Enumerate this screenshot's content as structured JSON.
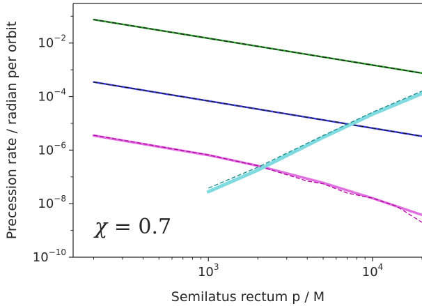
{
  "chart_data": {
    "type": "line",
    "xlabel": "Semilatus rectum p / M",
    "ylabel": "Precession rate / radian per orbit",
    "xscale": "log",
    "yscale": "log",
    "xlim": [
      150,
      20000
    ],
    "ylim": [
      1e-10,
      0.3
    ],
    "grid": false,
    "x_ticks": [
      {
        "base": "10",
        "exp": "3",
        "value": 1000
      },
      {
        "base": "10",
        "exp": "4",
        "value": 10000
      }
    ],
    "y_ticks": [
      {
        "base": "10",
        "exp": "−10",
        "value": 1e-10
      },
      {
        "base": "10",
        "exp": "−8",
        "value": 1e-08
      },
      {
        "base": "10",
        "exp": "−6",
        "value": 1e-06
      },
      {
        "base": "10",
        "exp": "−4",
        "value": 0.0001
      },
      {
        "base": "10",
        "exp": "−2",
        "value": 0.01
      }
    ],
    "annotation": {
      "symbol": "χ",
      "rest": " = 0.7"
    },
    "series": [
      {
        "color": "#2ca02c",
        "style": "solid",
        "width": 2.5,
        "points": [
          [
            200,
            0.075
          ],
          [
            20000,
            0.00075
          ]
        ]
      },
      {
        "color": "#1a1a1a",
        "style": "dashed",
        "width": 1.3,
        "points": [
          [
            200,
            0.075
          ],
          [
            20000,
            0.00075
          ]
        ]
      },
      {
        "color": "#3a3ae8",
        "style": "solid",
        "width": 2.5,
        "points": [
          [
            200,
            0.00035
          ],
          [
            20000,
            3.3e-06
          ]
        ]
      },
      {
        "color": "#1a1a1a",
        "style": "dashed",
        "width": 1.3,
        "points": [
          [
            200,
            0.00035
          ],
          [
            20000,
            3.3e-06
          ]
        ]
      },
      {
        "color": "#e070e0",
        "style": "solid",
        "width": 3.5,
        "points": [
          [
            200,
            3.5e-06
          ],
          [
            1000,
            6.5e-07
          ],
          [
            2000,
            2.6e-07
          ],
          [
            5000,
            6e-08
          ],
          [
            10000,
            1.6e-08
          ],
          [
            20000,
            3.8e-09
          ]
        ]
      },
      {
        "color": "#b000a0",
        "style": "dashed",
        "width": 1.3,
        "points": [
          [
            200,
            3.6e-06
          ],
          [
            1000,
            6.6e-07
          ],
          [
            2000,
            2.6e-07
          ],
          [
            4000,
            7e-08
          ],
          [
            5000,
            5.5e-08
          ],
          [
            7000,
            2.5e-08
          ],
          [
            10000,
            1.6e-08
          ],
          [
            14000,
            8e-09
          ],
          [
            20000,
            2e-09
          ]
        ]
      },
      {
        "color": "#7fdbe0",
        "style": "solid",
        "width": 5,
        "points": [
          [
            1000,
            2.8e-08
          ],
          [
            2000,
            1.8e-07
          ],
          [
            5000,
            3e-06
          ],
          [
            10000,
            2.2e-05
          ],
          [
            20000,
            0.00013
          ]
        ]
      },
      {
        "color": "#1a8a8a",
        "style": "dashed",
        "width": 1.3,
        "points": [
          [
            1000,
            3.8e-08
          ],
          [
            2000,
            2.3e-07
          ],
          [
            5000,
            3.5e-06
          ],
          [
            10000,
            2.6e-05
          ],
          [
            20000,
            0.00016
          ]
        ]
      }
    ]
  }
}
